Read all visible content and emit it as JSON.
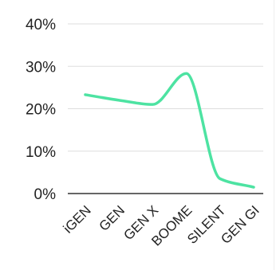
{
  "chart_data": {
    "type": "line",
    "categories": [
      "iGEN",
      "GEN",
      "GEN X",
      "BOOME",
      "SILENT",
      "GEN GI"
    ],
    "series": [
      {
        "values": [
          23.3,
          22.0,
          21.0,
          28.3,
          3.5,
          1.5
        ]
      }
    ],
    "ylim": [
      0,
      40
    ],
    "yticks": [
      0,
      10,
      20,
      30,
      40
    ],
    "ytick_labels": [
      "0%",
      "10%",
      "20%",
      "30%",
      "40%"
    ],
    "grid": true,
    "line_color": "#4de3a2",
    "grid_color": "#dddddd",
    "axis_color": "#333333"
  }
}
